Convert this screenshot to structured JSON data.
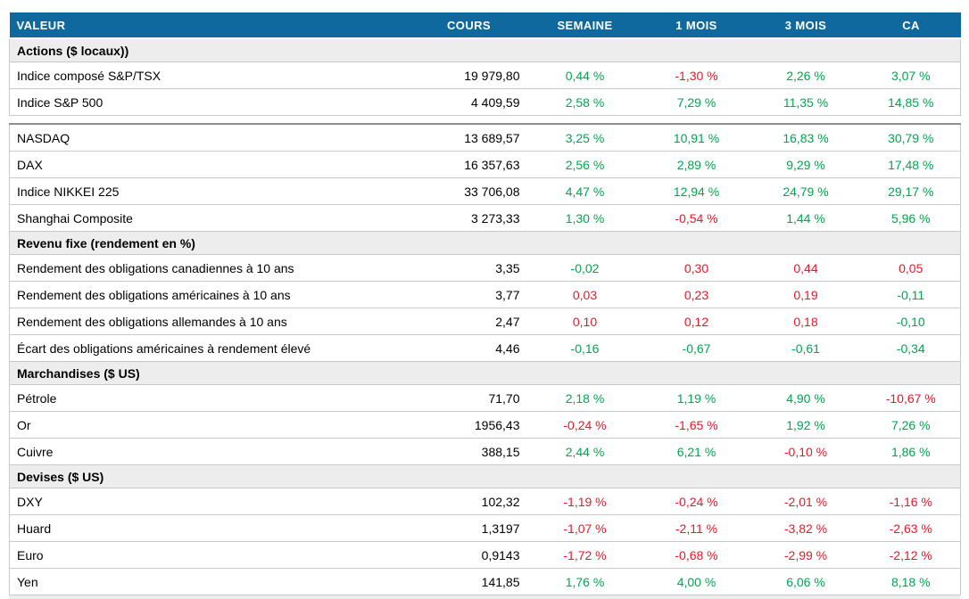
{
  "colors": {
    "header_bg": "#10699E",
    "header_text": "#FFFFFF",
    "positive": "#00A651",
    "negative": "#E8192C",
    "section_bg": "#EDEDED",
    "row_border": "#C9C9C9",
    "divider": "#8F8F8F"
  },
  "table": {
    "columns": [
      {
        "label": "VALEUR"
      },
      {
        "label": "COURS"
      },
      {
        "label": "SEMAINE"
      },
      {
        "label": "1 MOIS"
      },
      {
        "label": "3 MOIS"
      },
      {
        "label": "CA"
      }
    ],
    "sections": [
      {
        "title": "Actions ($ locaux))",
        "rows": [
          {
            "label": "Indice composé S&P/TSX",
            "cours": "19 979,80",
            "changes": [
              {
                "text": "0,44 %",
                "tone": "positive"
              },
              {
                "text": "-1,30 %",
                "tone": "negative"
              },
              {
                "text": "2,26 %",
                "tone": "positive"
              },
              {
                "text": "3,07 %",
                "tone": "positive"
              }
            ]
          },
          {
            "label": "Indice S&P 500",
            "cours": "4 409,59",
            "changes": [
              {
                "text": "2,58 %",
                "tone": "positive"
              },
              {
                "text": "7,29 %",
                "tone": "positive"
              },
              {
                "text": "11,35 %",
                "tone": "positive"
              },
              {
                "text": "14,85 %",
                "tone": "positive"
              }
            ]
          },
          {
            "label": "NASDAQ",
            "cours": "13 689,57",
            "divider_above": true,
            "changes": [
              {
                "text": "3,25 %",
                "tone": "positive"
              },
              {
                "text": "10,91 %",
                "tone": "positive"
              },
              {
                "text": "16,83 %",
                "tone": "positive"
              },
              {
                "text": "30,79 %",
                "tone": "positive"
              }
            ]
          },
          {
            "label": "DAX",
            "cours": "16 357,63",
            "changes": [
              {
                "text": "2,56 %",
                "tone": "positive"
              },
              {
                "text": "2,89 %",
                "tone": "positive"
              },
              {
                "text": "9,29 %",
                "tone": "positive"
              },
              {
                "text": "17,48 %",
                "tone": "positive"
              }
            ]
          },
          {
            "label": "Indice NIKKEI 225",
            "cours": "33 706,08",
            "changes": [
              {
                "text": "4,47 %",
                "tone": "positive"
              },
              {
                "text": "12,94 %",
                "tone": "positive"
              },
              {
                "text": "24,79 %",
                "tone": "positive"
              },
              {
                "text": "29,17 %",
                "tone": "positive"
              }
            ]
          },
          {
            "label": "Shanghai Composite",
            "cours": "3 273,33",
            "changes": [
              {
                "text": "1,30 %",
                "tone": "positive"
              },
              {
                "text": "-0,54 %",
                "tone": "negative"
              },
              {
                "text": "1,44 %",
                "tone": "positive"
              },
              {
                "text": "5,96 %",
                "tone": "positive"
              }
            ]
          }
        ]
      },
      {
        "title": "Revenu fixe (rendement en %)",
        "rows": [
          {
            "label": "Rendement des obligations canadiennes à 10 ans",
            "cours": "3,35",
            "changes": [
              {
                "text": "-0,02",
                "tone": "positive"
              },
              {
                "text": "0,30",
                "tone": "negative"
              },
              {
                "text": "0,44",
                "tone": "negative"
              },
              {
                "text": "0,05",
                "tone": "negative"
              }
            ]
          },
          {
            "label": "Rendement des obligations américaines à 10 ans",
            "cours": "3,77",
            "changes": [
              {
                "text": "0,03",
                "tone": "negative"
              },
              {
                "text": "0,23",
                "tone": "negative"
              },
              {
                "text": "0,19",
                "tone": "negative"
              },
              {
                "text": "-0,11",
                "tone": "positive"
              }
            ]
          },
          {
            "label": "Rendement des obligations allemandes à 10 ans",
            "cours": "2,47",
            "changes": [
              {
                "text": "0,10",
                "tone": "negative"
              },
              {
                "text": "0,12",
                "tone": "negative"
              },
              {
                "text": "0,18",
                "tone": "negative"
              },
              {
                "text": "-0,10",
                "tone": "positive"
              }
            ]
          },
          {
            "label": "Écart des obligations américaines à rendement élevé",
            "cours": "4,46",
            "changes": [
              {
                "text": "-0,16",
                "tone": "positive"
              },
              {
                "text": "-0,67",
                "tone": "positive"
              },
              {
                "text": "-0,61",
                "tone": "positive"
              },
              {
                "text": "-0,34",
                "tone": "positive"
              }
            ]
          }
        ]
      },
      {
        "title": "Marchandises ($ US)",
        "rows": [
          {
            "label": "Pétrole",
            "cours": "71,70",
            "changes": [
              {
                "text": "2,18 %",
                "tone": "positive"
              },
              {
                "text": "1,19 %",
                "tone": "positive"
              },
              {
                "text": "4,90 %",
                "tone": "positive"
              },
              {
                "text": "-10,67 %",
                "tone": "negative"
              }
            ]
          },
          {
            "label": "Or",
            "cours": "1956,43",
            "changes": [
              {
                "text": "-0,24 %",
                "tone": "negative"
              },
              {
                "text": "-1,65 %",
                "tone": "negative"
              },
              {
                "text": "1,92 %",
                "tone": "positive"
              },
              {
                "text": "7,26 %",
                "tone": "positive"
              }
            ]
          },
          {
            "label": "Cuivre",
            "cours": "388,15",
            "changes": [
              {
                "text": "2,44 %",
                "tone": "positive"
              },
              {
                "text": "6,21 %",
                "tone": "positive"
              },
              {
                "text": "-0,10 %",
                "tone": "negative"
              },
              {
                "text": "1,86 %",
                "tone": "positive"
              }
            ]
          }
        ]
      },
      {
        "title": "Devises ($ US)",
        "rows": [
          {
            "label": "DXY",
            "cours": "102,32",
            "changes": [
              {
                "text": "-1,19 %",
                "tone": "negative"
              },
              {
                "text": "-0,24 %",
                "tone": "negative"
              },
              {
                "text": "-2,01 %",
                "tone": "negative"
              },
              {
                "text": "-1,16 %",
                "tone": "negative"
              }
            ]
          },
          {
            "label": "Huard",
            "cours": "1,3197",
            "changes": [
              {
                "text": "-1,07 %",
                "tone": "negative"
              },
              {
                "text": "-2,11 %",
                "tone": "negative"
              },
              {
                "text": "-3,82 %",
                "tone": "negative"
              },
              {
                "text": "-2,63 %",
                "tone": "negative"
              }
            ]
          },
          {
            "label": "Euro",
            "cours": "0,9143",
            "changes": [
              {
                "text": "-1,72 %",
                "tone": "negative"
              },
              {
                "text": "-0,68 %",
                "tone": "negative"
              },
              {
                "text": "-2,99 %",
                "tone": "negative"
              },
              {
                "text": "-2,12 %",
                "tone": "negative"
              }
            ]
          },
          {
            "label": "Yen",
            "cours": "141,85",
            "changes": [
              {
                "text": "1,76 %",
                "tone": "positive"
              },
              {
                "text": "4,00 %",
                "tone": "positive"
              },
              {
                "text": "6,06 %",
                "tone": "positive"
              },
              {
                "text": "8,18 %",
                "tone": "positive"
              }
            ]
          }
        ]
      }
    ]
  }
}
